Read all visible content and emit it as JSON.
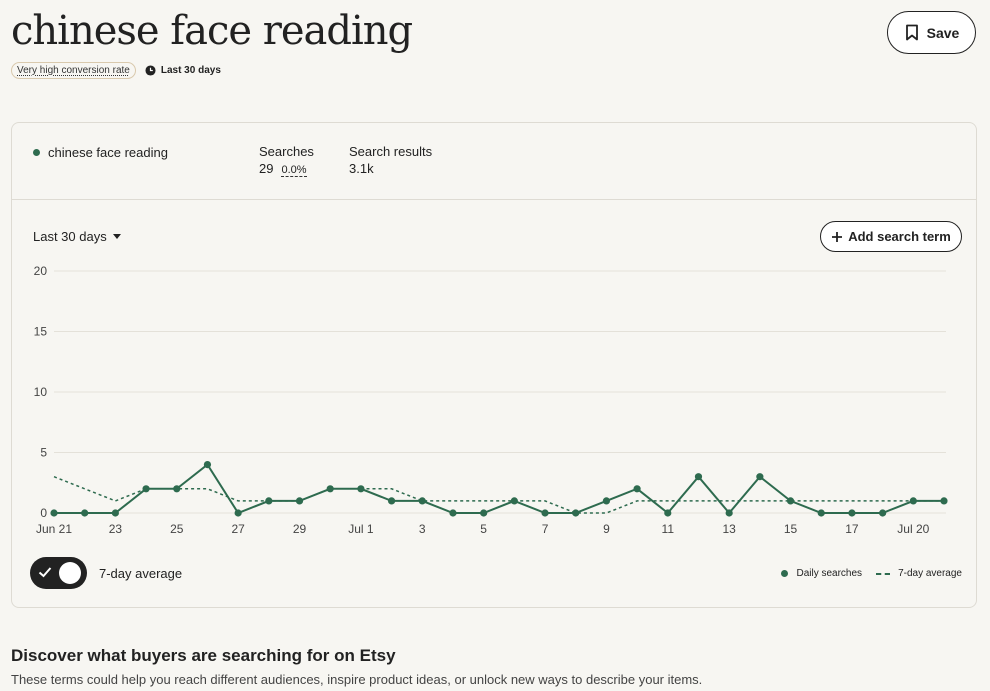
{
  "page": {
    "title": "chinese face reading",
    "conversion_badge": "Very high conversion rate",
    "period_badge": "Last 30 days",
    "save_label": "Save"
  },
  "card": {
    "term": "chinese face reading",
    "searches_label": "Searches",
    "searches_value": "29",
    "searches_change": "0.0%",
    "results_label": "Search results",
    "results_value": "3.1k",
    "period_select": "Last 30 days",
    "add_term_label": "Add search term",
    "toggle_label": "7-day average",
    "toggle_on": true
  },
  "legend": {
    "daily": "Daily searches",
    "average": "7-day average"
  },
  "discover": {
    "title": "Discover what buyers are searching for on Etsy",
    "subtitle": "These terms could help you reach different audiences, inspire product ideas, or unlock new ways to describe your items."
  },
  "colors": {
    "series": "#2e6b4f",
    "grid": "#e4e1d9"
  },
  "chart_data": {
    "type": "line",
    "ylim": [
      0,
      20
    ],
    "yticks": [
      "20",
      "15",
      "10",
      "5",
      "0"
    ],
    "x_tick_labels": [
      "Jun 21",
      "23",
      "25",
      "27",
      "29",
      "Jul 1",
      "3",
      "5",
      "7",
      "9",
      "11",
      "13",
      "15",
      "17",
      "Jul 20"
    ],
    "x": [
      "Jun 21",
      "Jun 22",
      "Jun 23",
      "Jun 24",
      "Jun 25",
      "Jun 26",
      "Jun 27",
      "Jun 28",
      "Jun 29",
      "Jun 30",
      "Jul 1",
      "Jul 2",
      "Jul 3",
      "Jul 4",
      "Jul 5",
      "Jul 6",
      "Jul 7",
      "Jul 8",
      "Jul 9",
      "Jul 10",
      "Jul 11",
      "Jul 12",
      "Jul 13",
      "Jul 14",
      "Jul 15",
      "Jul 16",
      "Jul 17",
      "Jul 18",
      "Jul 19",
      "Jul 20"
    ],
    "series": [
      {
        "name": "Daily searches",
        "style": "solid-with-markers",
        "values": [
          0,
          0,
          0,
          2,
          2,
          4,
          0,
          1,
          1,
          2,
          2,
          1,
          1,
          0,
          0,
          1,
          0,
          0,
          1,
          2,
          0,
          3,
          0,
          3,
          1,
          0,
          0,
          0,
          1,
          1
        ]
      },
      {
        "name": "7-day average",
        "style": "dashed",
        "values": [
          3,
          2,
          1,
          2,
          2,
          2,
          1,
          1,
          1,
          2,
          2,
          2,
          1,
          1,
          1,
          1,
          1,
          0,
          0,
          1,
          1,
          1,
          1,
          1,
          1,
          1,
          1,
          1,
          1,
          1
        ]
      }
    ],
    "legend_position": "bottom-right",
    "grid": true
  }
}
